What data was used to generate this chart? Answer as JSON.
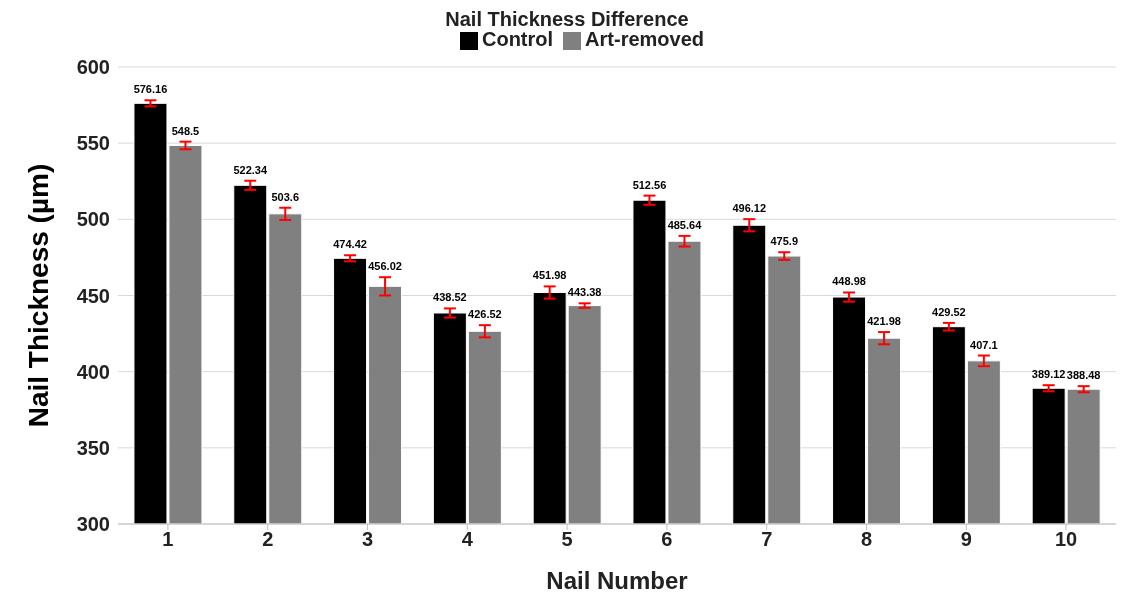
{
  "chart_data": {
    "type": "bar",
    "title": "Nail Thickness Difference",
    "xlabel": "Nail Number",
    "ylabel": "Nail Thickness (µm)",
    "categories": [
      "1",
      "2",
      "3",
      "4",
      "5",
      "6",
      "7",
      "8",
      "9",
      "10"
    ],
    "series": [
      {
        "name": "Control",
        "color": "#000000",
        "values": [
          576.16,
          522.34,
          474.42,
          438.52,
          451.98,
          512.56,
          496.12,
          448.98,
          429.52,
          389.12
        ],
        "errors": [
          2,
          3,
          2,
          3,
          4,
          3,
          4,
          3,
          2.5,
          2
        ]
      },
      {
        "name": "Art-removed",
        "color": "#808080",
        "values": [
          548.5,
          503.6,
          456.02,
          426.52,
          443.38,
          485.64,
          475.9,
          421.98,
          407.1,
          388.48
        ],
        "errors": [
          2.5,
          4,
          6,
          4,
          1.5,
          3.5,
          2.5,
          4,
          3.5,
          2
        ]
      }
    ],
    "ylim": [
      300,
      600
    ],
    "yticks": [
      300,
      350,
      400,
      450,
      500,
      550,
      600
    ],
    "grid": "y",
    "legend": "top",
    "data_labels": true
  }
}
